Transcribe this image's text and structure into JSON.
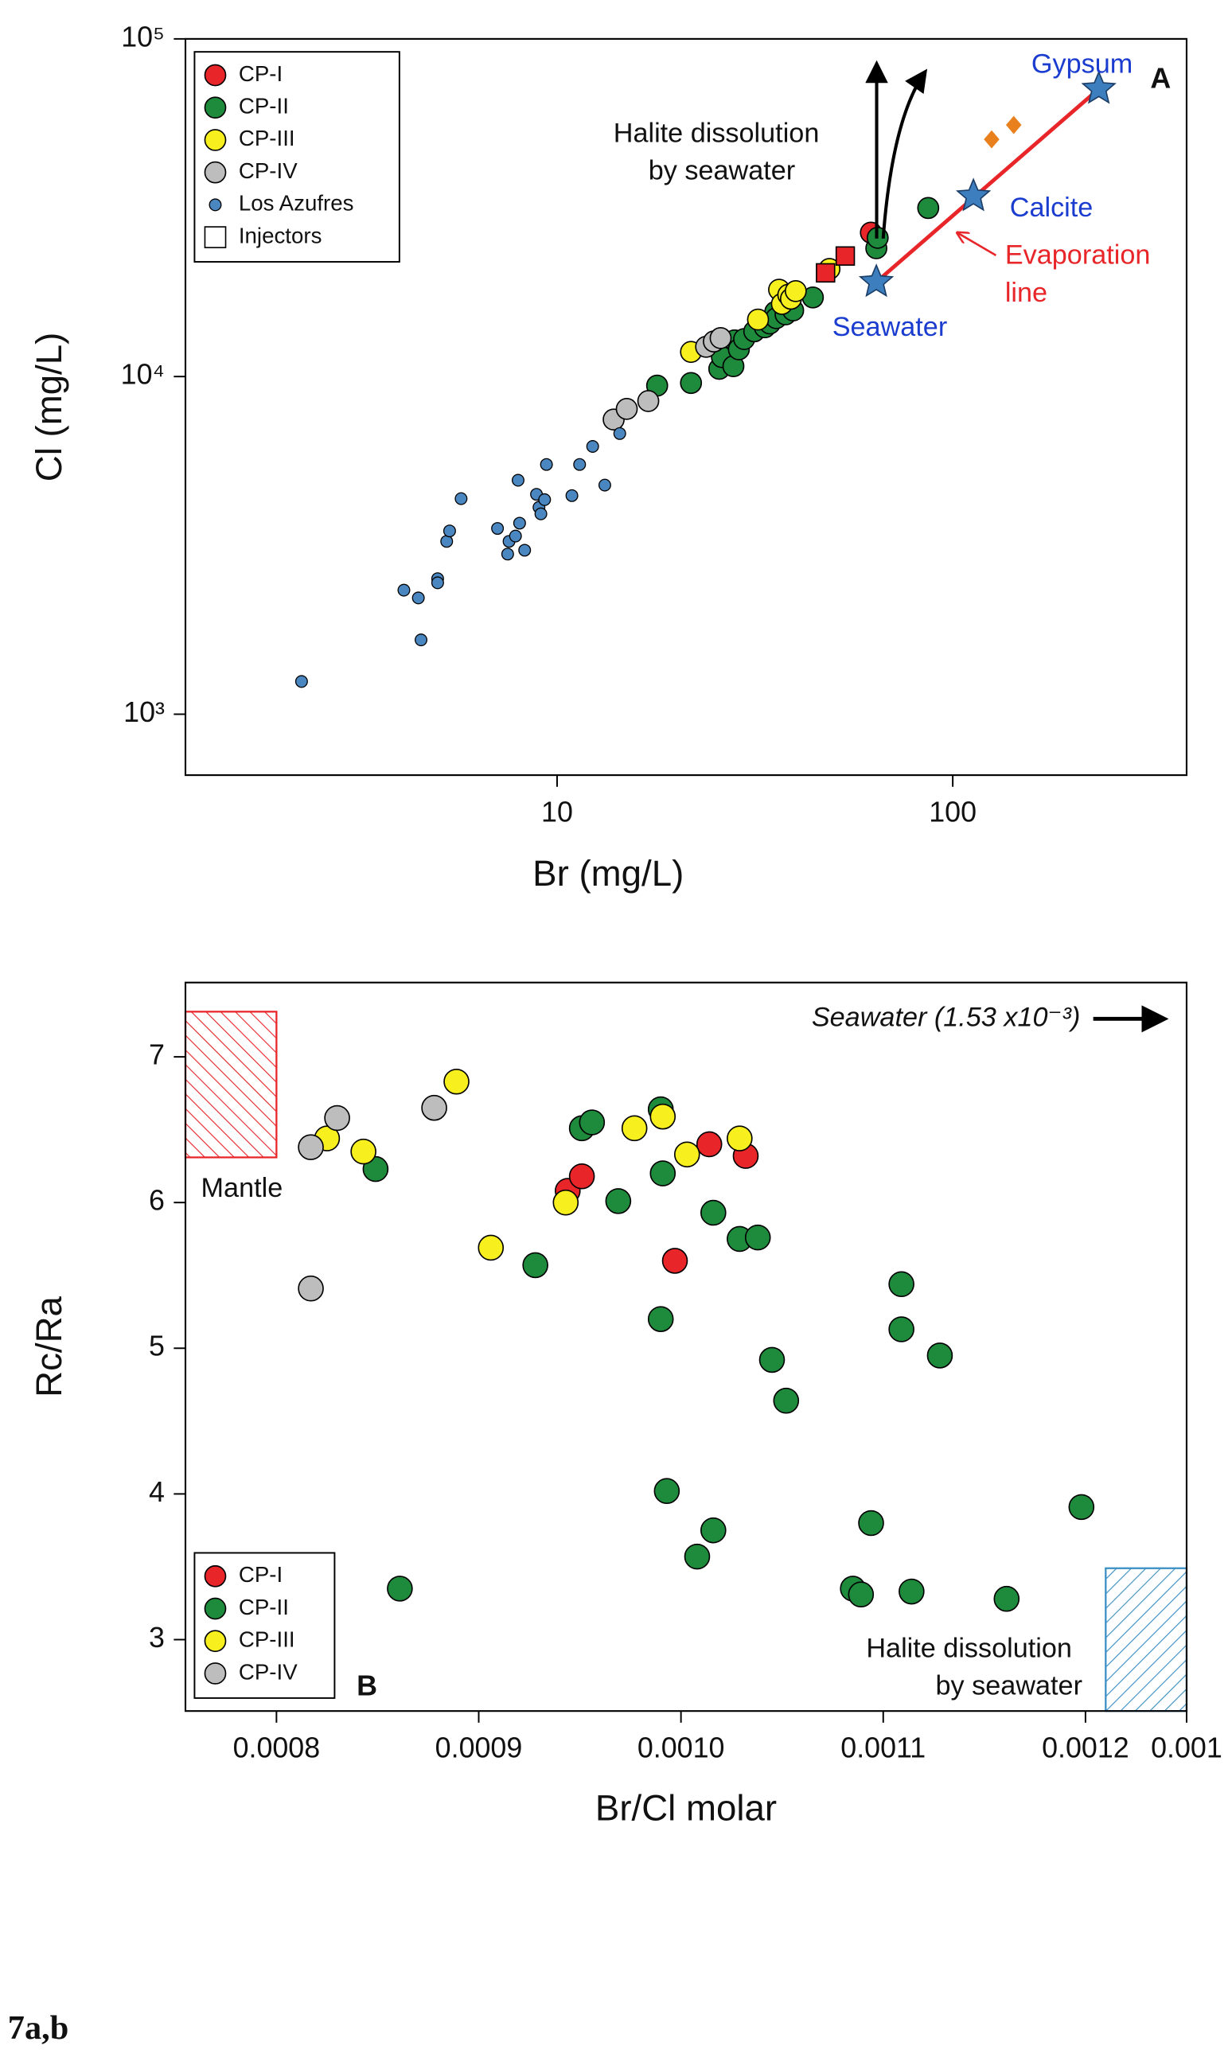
{
  "caption": "7a,b",
  "chart_data": [
    {
      "type": "scatter",
      "panel_label": "A",
      "x_label": "Br (mg/L)",
      "y_label": "Cl (mg/L)",
      "xscale": "log",
      "yscale": "log",
      "xlim": [
        1.15,
        390
      ],
      "ylim": [
        660,
        100000
      ],
      "xticks": [
        10,
        100
      ],
      "yticks": [
        {
          "value": 1000,
          "label": "10³"
        },
        {
          "value": 10000,
          "label": "10⁴"
        },
        {
          "value": 100000,
          "label": "10⁵"
        }
      ],
      "legend": "upper left",
      "series": [
        {
          "name": "CP-I",
          "color": "#e8262a",
          "marker": "circle",
          "x": [
            62.1
          ],
          "values": [
            26690
          ]
        },
        {
          "name": "CP-II",
          "color": "#1e8a3c",
          "marker": "circle",
          "x": [
            17.9,
            21.8,
            25.7,
            26.1,
            27.9,
            28.1,
            28.8,
            29.7,
            31.5,
            33.5,
            34.5,
            35.6,
            35.8,
            37.8,
            39.5,
            44.3,
            64.1,
            64.6,
            86.7
          ],
          "values": [
            9400,
            9570,
            10540,
            11420,
            10730,
            12800,
            12040,
            12910,
            13610,
            13990,
            14360,
            15540,
            14890,
            15280,
            15700,
            17150,
            23990,
            25750,
            31560
          ]
        },
        {
          "name": "CP-III",
          "color": "#f7ef1e",
          "marker": "circle",
          "x": [
            21.8,
            32.2,
            36.4,
            37.0,
            38.4,
            39.0,
            40.1,
            48.8
          ],
          "values": [
            11830,
            14750,
            18080,
            16410,
            17460,
            17000,
            17910,
            20830
          ]
        },
        {
          "name": "CP-IV",
          "color": "#bdbdbd",
          "marker": "circle",
          "x": [
            13.9,
            15.0,
            17.0,
            23.8,
            24.9,
            25.9
          ],
          "values": [
            7460,
            8020,
            8460,
            12250,
            12700,
            13000
          ]
        },
        {
          "name": "Los Azufres",
          "color": "#4a86c0",
          "marker": "small-circle",
          "x": [
            2.26,
            4.1,
            4.46,
            4.53,
            4.99,
            4.99,
            5.26,
            5.35,
            5.72,
            7.07,
            7.5,
            7.56,
            7.85,
            7.97,
            8.04,
            8.28,
            8.87,
            9.0,
            9.1,
            9.3,
            9.4,
            10.9,
            11.4,
            12.3,
            13.2,
            14.4
          ],
          "values": [
            1250,
            2330,
            2210,
            1660,
            2520,
            2450,
            3250,
            3490,
            4350,
            3550,
            2980,
            3250,
            3370,
            4930,
            3680,
            3060,
            4480,
            4100,
            3920,
            4320,
            5490,
            4440,
            5490,
            6210,
            4770,
            6780
          ]
        },
        {
          "name": "Injectors",
          "color": "#e8262a",
          "legend_color": "#ffffff",
          "marker": "square",
          "x": [
            53.5,
            47.7
          ],
          "values": [
            22750,
            20280
          ]
        },
        {
          "color": "#e8801e",
          "marker": "diamond",
          "x": [
            125.4,
            142.6
          ],
          "values": [
            50400,
            55600
          ]
        }
      ],
      "reference_points": [
        {
          "label": "Seawater",
          "x": 64.1,
          "y": 19050
        },
        {
          "label": "Calcite",
          "x": 112.8,
          "y": 34200
        },
        {
          "label": "Gypsum",
          "x": 234,
          "y": 71100
        }
      ],
      "star_color": "#3d7ebf",
      "reference_label_color": "#1a3ccf",
      "evaporation_line_color": "#e8262a",
      "evaporation_label": [
        "Evaporation",
        "line"
      ],
      "halite_label": [
        "Halite dissolution",
        "by seawater"
      ]
    },
    {
      "type": "scatter",
      "panel_label": "B",
      "x_label": "Br/Cl molar",
      "y_label": "Rc/Ra",
      "xlim": [
        0.000755,
        0.00125
      ],
      "ylim": [
        2.51,
        7.51
      ],
      "xticks": [
        0.0008,
        0.0009,
        {
          "value": 0.001,
          "label": "0.0010"
        },
        0.0011,
        0.0012,
        {
          "value": 0.00125,
          "label": "0.001"
        }
      ],
      "yticks": [
        3,
        4,
        5,
        6,
        7
      ],
      "legend": "lower left",
      "series": [
        {
          "name": "CP-I",
          "color": "#e8262a",
          "marker": "circle",
          "x": [
            0.000944,
            0.000951,
            0.001014,
            0.001032,
            0.000997
          ],
          "values": [
            6.08,
            6.18,
            6.4,
            6.32,
            5.6
          ]
        },
        {
          "name": "CP-II",
          "color": "#1e8a3c",
          "marker": "circle",
          "x": [
            0.000849,
            0.000861,
            0.000928,
            0.000951,
            0.000956,
            0.000969,
            0.00099,
            0.000991,
            0.00099,
            0.000993,
            0.001008,
            0.001016,
            0.001016,
            0.001029,
            0.001038,
            0.001045,
            0.001052,
            0.001085,
            0.001089,
            0.001094,
            0.001109,
            0.001109,
            0.001114,
            0.001128,
            0.001161,
            0.001198
          ],
          "values": [
            6.23,
            3.35,
            5.57,
            6.51,
            6.55,
            6.01,
            6.64,
            6.2,
            5.2,
            4.02,
            3.57,
            3.75,
            5.93,
            5.75,
            5.76,
            4.92,
            4.64,
            3.35,
            3.31,
            3.8,
            5.44,
            5.13,
            3.33,
            4.95,
            3.28,
            3.91
          ]
        },
        {
          "name": "CP-III",
          "color": "#f7ef1e",
          "marker": "circle",
          "x": [
            0.000825,
            0.000843,
            0.000889,
            0.000906,
            0.000943,
            0.000977,
            0.000991,
            0.001003,
            0.001029
          ],
          "values": [
            6.44,
            6.35,
            6.83,
            5.69,
            6.0,
            6.51,
            6.59,
            6.33,
            6.44
          ]
        },
        {
          "name": "CP-IV",
          "color": "#bdbdbd",
          "marker": "circle",
          "x": [
            0.000817,
            0.00083,
            0.000878,
            0.000817
          ],
          "values": [
            6.38,
            6.58,
            6.65,
            5.41
          ]
        }
      ],
      "regions": [
        {
          "label": [
            "Mantle"
          ],
          "color": "#e8262a",
          "hatch": "forward",
          "x": [
            0.000755,
            0.0008
          ],
          "y": [
            6.31,
            7.31
          ]
        },
        {
          "label": [
            "Halite dissolution",
            "by seawater"
          ],
          "color": "#3b8fc4",
          "hatch": "back",
          "x": [
            0.00121,
            0.00125
          ],
          "y": [
            2.51,
            3.49
          ]
        }
      ],
      "seawater_note": "Seawater (1.53 x10⁻³)"
    }
  ]
}
